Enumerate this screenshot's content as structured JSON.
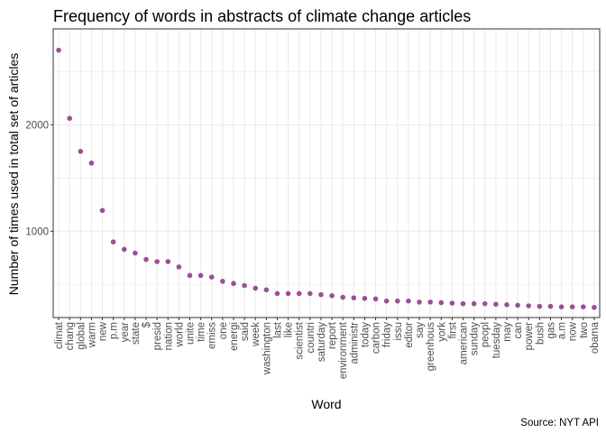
{
  "chart_data": {
    "type": "scatter",
    "title": "Frequency of words in abstracts of climate change articles",
    "xlabel": "Word",
    "ylabel": "Number of times used in total set of articles",
    "caption": "Source: NYT API",
    "y_ticks": [
      1000,
      2000
    ],
    "y_minor_ticks": [
      500,
      1500,
      2500
    ],
    "ylim": [
      190,
      2900
    ],
    "grid": true,
    "theme": "light",
    "point_color": "#9b4f96",
    "panel_border_color": "#333333",
    "grid_color": "#ebebeb",
    "categories": [
      "climat",
      "chang",
      "global",
      "warm",
      "new",
      "p.m",
      "year",
      "state",
      "$",
      "presid",
      "nation",
      "world",
      "unite",
      "time",
      "emiss",
      "one",
      "energi",
      "said",
      "week",
      "washington",
      "last",
      "like",
      "scientist",
      "countri",
      "saturday",
      "report",
      "environment",
      "administr",
      "today",
      "carbon",
      "friday",
      "issu",
      "editor",
      "say",
      "greenhous",
      "york",
      "first",
      "american",
      "sunday",
      "peopl",
      "tuesday",
      "may",
      "can",
      "power",
      "bush",
      "gas",
      "a.m",
      "now",
      "two",
      "obama"
    ],
    "values": [
      2700,
      2060,
      1750,
      1640,
      1195,
      900,
      830,
      795,
      735,
      715,
      715,
      665,
      585,
      585,
      570,
      530,
      510,
      490,
      465,
      450,
      415,
      415,
      415,
      415,
      405,
      395,
      380,
      375,
      370,
      365,
      345,
      345,
      345,
      335,
      335,
      330,
      325,
      320,
      320,
      320,
      315,
      310,
      305,
      300,
      295,
      295,
      290,
      290,
      290,
      285
    ]
  }
}
